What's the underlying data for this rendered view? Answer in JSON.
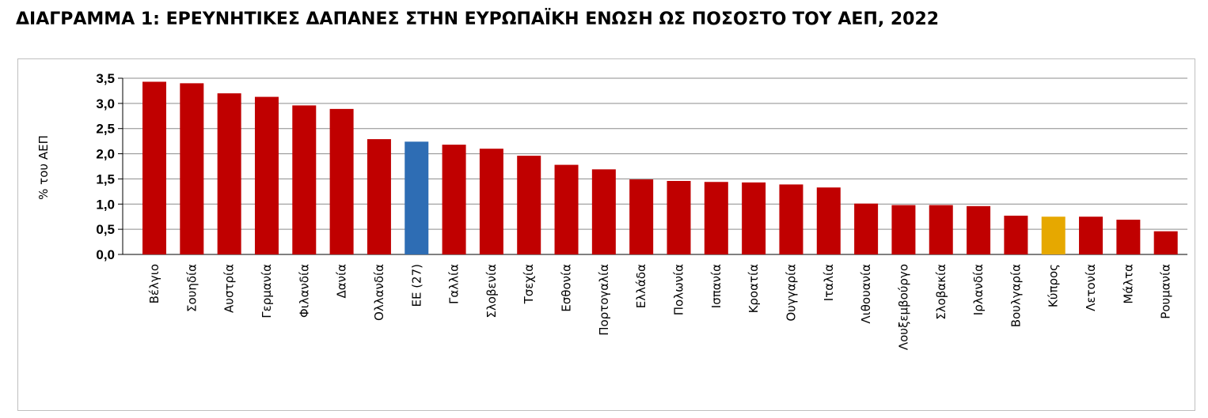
{
  "title": "ΔΙΑΓΡΑΜΜΑ 1:  ΕΡΕΥΝΗΤΙΚΕΣ ΔΑΠΑΝΕΣ ΣΤΗΝ ΕΥΡΩΠΑΪΚΗ ΕΝΩΣΗ ΩΣ ΠΟΣΟΣΤΟ ΤΟΥ ΑΕΠ, 2022",
  "chart_data": {
    "type": "bar",
    "ylabel": "% του ΑΕΠ",
    "ylim": [
      0,
      3.5
    ],
    "yticks": [
      "0,0",
      "0,5",
      "1,0",
      "1,5",
      "2,0",
      "2,5",
      "3,0",
      "3,5"
    ],
    "grid": true,
    "categories": [
      "Βέλγιο",
      "Σουηδία",
      "Αυστρία",
      "Γερμανία",
      "Φιλανδία",
      "Δανία",
      "Ολλανδία",
      "ΕΕ (27)",
      "Γαλλία",
      "Σλοβενία",
      "Τσεχία",
      "Εσθονία",
      "Πορτογαλία",
      "Ελλάδα",
      "Πολωνία",
      "Ισπανία",
      "Κροατία",
      "Ουγγαρία",
      "Ιταλία",
      "Λιθουανία",
      "Λουξεμβούργο",
      "Σλοβακία",
      "Ιρλανδία",
      "Βουλγαρία",
      "Κύπρος",
      "Λετονία",
      "Μάλτα",
      "Ρουμανία"
    ],
    "values": [
      3.43,
      3.4,
      3.2,
      3.13,
      2.96,
      2.89,
      2.29,
      2.24,
      2.18,
      2.1,
      1.96,
      1.78,
      1.69,
      1.49,
      1.46,
      1.44,
      1.43,
      1.39,
      1.33,
      1.01,
      0.98,
      0.98,
      0.96,
      0.77,
      0.75,
      0.75,
      0.69,
      0.46
    ],
    "colors": {
      "default": "#c00000",
      "highlight_eu": "#2e6db4",
      "highlight_cyprus": "#e6a800"
    },
    "highlight_index_eu": 7,
    "highlight_index_cyprus": 24
  }
}
